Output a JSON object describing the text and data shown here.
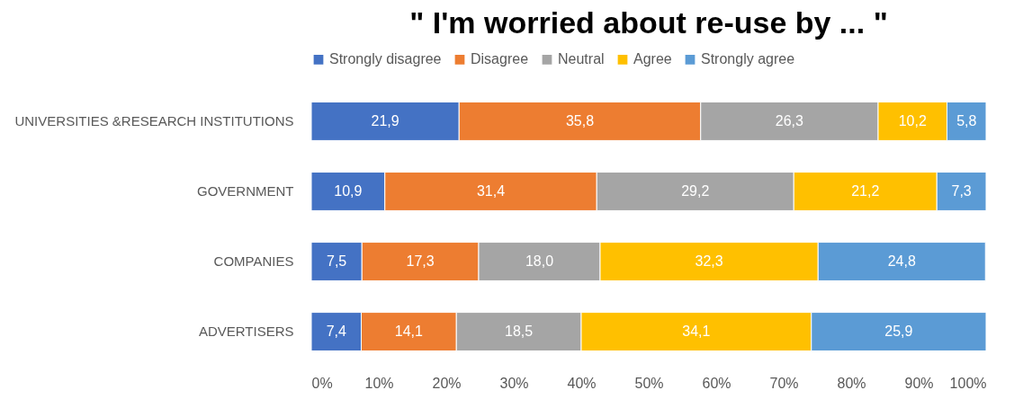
{
  "chart_data": {
    "type": "bar",
    "orientation": "horizontal",
    "stacked": true,
    "title": "\" I'm worried about re-use by ... \"",
    "categories": [
      "UNIVERSITIES &RESEARCH INSTITUTIONS",
      "GOVERNMENT",
      "COMPANIES",
      "ADVERTISERS"
    ],
    "series": [
      {
        "name": "Strongly disagree",
        "color": "#4472c4",
        "values": [
          21.9,
          10.9,
          7.5,
          7.4
        ],
        "value_labels": [
          "21,9",
          "10,9",
          "7,5",
          "7,4"
        ]
      },
      {
        "name": "Disagree",
        "color": "#ed7d31",
        "values": [
          35.8,
          31.4,
          17.3,
          14.1
        ],
        "value_labels": [
          "35,8",
          "31,4",
          "17,3",
          "14,1"
        ]
      },
      {
        "name": "Neutral",
        "color": "#a5a5a5",
        "values": [
          26.3,
          29.2,
          18.0,
          18.5
        ],
        "value_labels": [
          "26,3",
          "29,2",
          "18,0",
          "18,5"
        ]
      },
      {
        "name": "Agree",
        "color": "#ffc000",
        "values": [
          10.2,
          21.2,
          32.3,
          34.1
        ],
        "value_labels": [
          "10,2",
          "21,2",
          "32,3",
          "34,1"
        ]
      },
      {
        "name": "Strongly agree",
        "color": "#5b9bd5",
        "values": [
          5.8,
          7.3,
          24.8,
          25.9
        ],
        "value_labels": [
          "5,8",
          "7,3",
          "24,8",
          "25,9"
        ]
      }
    ],
    "xlim": [
      0,
      100
    ],
    "xticks": [
      {
        "value": 0,
        "label": "0%"
      },
      {
        "value": 10,
        "label": "10%"
      },
      {
        "value": 20,
        "label": "20%"
      },
      {
        "value": 30,
        "label": "30%"
      },
      {
        "value": 40,
        "label": "40%"
      },
      {
        "value": 50,
        "label": "50%"
      },
      {
        "value": 60,
        "label": "60%"
      },
      {
        "value": 70,
        "label": "70%"
      },
      {
        "value": 80,
        "label": "80%"
      },
      {
        "value": 90,
        "label": "90%"
      },
      {
        "value": 100,
        "label": "100%"
      }
    ],
    "legend": "top",
    "grid": false
  }
}
